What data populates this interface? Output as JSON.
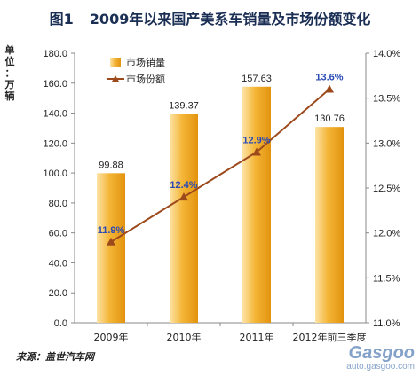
{
  "title": {
    "figure_no": "图1",
    "text": "2009年以来国产美系车销量及市场份额变化"
  },
  "y_unit_chars": [
    "单",
    "位",
    "：",
    "万",
    "辆"
  ],
  "legend": {
    "bar": "市场销量",
    "line": "市场份额"
  },
  "source": "来源：盖世汽车网",
  "watermark": {
    "brand": "Gasgoo",
    "url": "auto.gasgoo.com"
  },
  "colors": {
    "bar": "#f4b536",
    "bar_light": "#fde3a6",
    "bar_dark": "#e2930f",
    "line": "#9c4a1c",
    "share_label": "#2a4bb5",
    "axis": "#888888"
  },
  "chart_data": {
    "type": "bar",
    "categories": [
      "2009年",
      "2010年",
      "2011年",
      "2012年前三季度"
    ],
    "series": [
      {
        "name": "市场销量",
        "type": "bar",
        "axis": "left",
        "values": [
          99.88,
          139.37,
          157.63,
          130.76
        ],
        "labels": [
          "99.88",
          "139.37",
          "157.63",
          "130.76"
        ]
      },
      {
        "name": "市场份额",
        "type": "line",
        "axis": "right",
        "values": [
          11.9,
          12.4,
          12.9,
          13.6
        ],
        "labels": [
          "11.9%",
          "12.4%",
          "12.9%",
          "13.6%"
        ]
      }
    ],
    "y_left": {
      "ylim": [
        0,
        180
      ],
      "ticks": [
        "0.0",
        "20.0",
        "40.0",
        "60.0",
        "80.0",
        "100.0",
        "120.0",
        "140.0",
        "160.0",
        "180.0"
      ]
    },
    "y_right": {
      "ylim": [
        11.0,
        14.0
      ],
      "ticks": [
        "11.0%",
        "11.5%",
        "12.0%",
        "12.5%",
        "13.0%",
        "13.5%",
        "14.0%"
      ]
    },
    "grid": false,
    "legend_position": "top-left"
  }
}
